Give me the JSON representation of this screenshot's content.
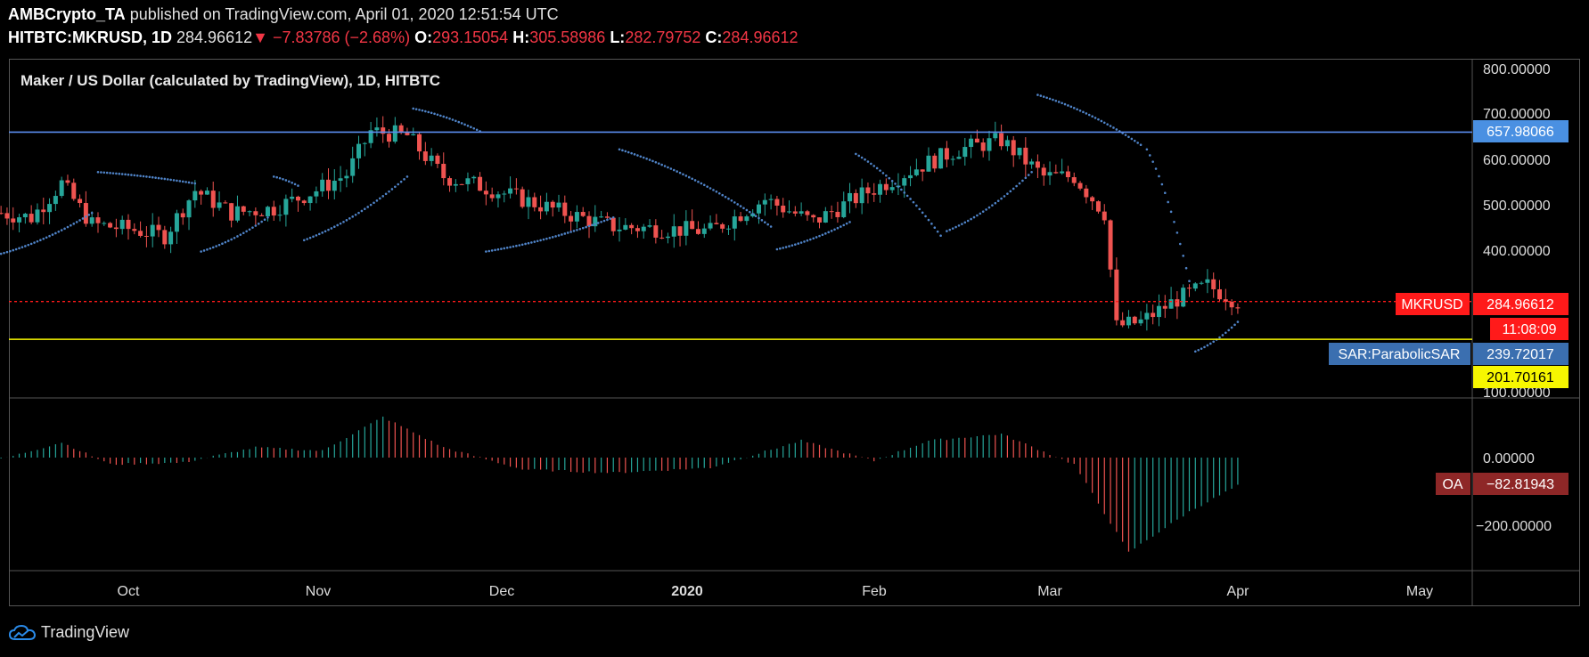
{
  "header": {
    "author": "AMBCrypto_TA",
    "published": "published on TradingView.com, April 01, 2020 12:51:54 UTC",
    "symbol": "HITBTC:MKRUSD, 1D",
    "last": "284.96612",
    "change": "−7.83786 (−2.68%)",
    "o_label": "O:",
    "o": "293.15054",
    "h_label": "H:",
    "h": "305.58986",
    "l_label": "L:",
    "l": "282.79752",
    "c_label": "C:",
    "c": "284.96612"
  },
  "chart_title": "Maker / US Dollar (calculated by TradingView), 1D, HITBTC",
  "badges": {
    "resistance": "657.98066",
    "symbol_name": "MKRUSD",
    "price": "284.96612",
    "countdown": "11:08:09",
    "sar_name": "SAR:ParabolicSAR",
    "sar": "239.72017",
    "support": "201.70161",
    "osc_name": "OA",
    "osc": "−82.81943"
  },
  "brand": "TradingView",
  "colors": {
    "up": "#26a69a",
    "down": "#ef5350",
    "sar": "#4f83c7",
    "resistance": "#5b8def",
    "support": "#f7f700",
    "price": "#ff1a1a"
  },
  "chart_data": [
    {
      "type": "candlestick",
      "title": "Maker / US Dollar (calculated by TradingView), 1D, HITBTC",
      "ylim": [
        130,
        830
      ],
      "y_ticks": [
        "800.00000",
        "700.00000",
        "600.00000",
        "500.00000",
        "400.00000",
        "100.00000"
      ],
      "x_ticks": [
        "Oct",
        "Nov",
        "Dec",
        "2020",
        "Feb",
        "Mar",
        "Apr",
        "May"
      ],
      "horizontal_lines": {
        "resistance": 657.98066,
        "support": 201.70161,
        "last": 284.96612
      },
      "close_path": [
        [
          "2019-09-10",
          480
        ],
        [
          "2019-09-15",
          470
        ],
        [
          "2019-09-20",
          545
        ],
        [
          "2019-09-25",
          455
        ],
        [
          "2019-10-01",
          445
        ],
        [
          "2019-10-07",
          430
        ],
        [
          "2019-10-12",
          530
        ],
        [
          "2019-10-18",
          480
        ],
        [
          "2019-10-25",
          490
        ],
        [
          "2019-11-01",
          530
        ],
        [
          "2019-11-06",
          565
        ],
        [
          "2019-11-10",
          660
        ],
        [
          "2019-11-16",
          650
        ],
        [
          "2019-11-22",
          560
        ],
        [
          "2019-11-28",
          540
        ],
        [
          "2019-12-05",
          510
        ],
        [
          "2019-12-12",
          480
        ],
        [
          "2019-12-20",
          450
        ],
        [
          "2019-12-28",
          445
        ],
        [
          "2020-01-05",
          440
        ],
        [
          "2020-01-14",
          510
        ],
        [
          "2020-01-22",
          460
        ],
        [
          "2020-01-30",
          520
        ],
        [
          "2020-02-08",
          580
        ],
        [
          "2020-02-15",
          620
        ],
        [
          "2020-02-22",
          640
        ],
        [
          "2020-02-29",
          560
        ],
        [
          "2020-03-05",
          560
        ],
        [
          "2020-03-10",
          480
        ],
        [
          "2020-03-12",
          230
        ],
        [
          "2020-03-16",
          240
        ],
        [
          "2020-03-22",
          290
        ],
        [
          "2020-03-27",
          320
        ],
        [
          "2020-04-01",
          284.97
        ]
      ],
      "parabolic_sar": [
        [
          "2019-09-10",
          390
        ],
        [
          "2019-09-25",
          480
        ],
        [
          "2019-09-26",
          570
        ],
        [
          "2019-10-12",
          545
        ],
        [
          "2019-10-13",
          395
        ],
        [
          "2019-10-24",
          470
        ],
        [
          "2019-10-25",
          560
        ],
        [
          "2019-10-29",
          540
        ],
        [
          "2019-10-30",
          420
        ],
        [
          "2019-11-16",
          560
        ],
        [
          "2019-11-17",
          710
        ],
        [
          "2019-11-28",
          660
        ],
        [
          "2019-11-29",
          395
        ],
        [
          "2019-12-20",
          470
        ],
        [
          "2019-12-21",
          620
        ],
        [
          "2020-01-15",
          450
        ],
        [
          "2020-01-16",
          400
        ],
        [
          "2020-01-28",
          460
        ],
        [
          "2020-01-29",
          610
        ],
        [
          "2020-02-12",
          430
        ],
        [
          "2020-02-13",
          440
        ],
        [
          "2020-02-27",
          570
        ],
        [
          "2020-02-28",
          740
        ],
        [
          "2020-03-16",
          630
        ],
        [
          "2020-03-17",
          620
        ],
        [
          "2020-03-24",
          330
        ],
        [
          "2020-03-25",
          175
        ],
        [
          "2020-04-01",
          240
        ]
      ],
      "last_price": 284.96612,
      "sar_value": 239.72017
    },
    {
      "type": "histogram",
      "series_name": "OA",
      "ylim": [
        -290,
        140
      ],
      "y_ticks": [
        "0.00000",
        "−200.00000"
      ],
      "points": [
        [
          "2019-09-10",
          -5
        ],
        [
          "2019-09-20",
          45
        ],
        [
          "2019-09-28",
          -20
        ],
        [
          "2019-10-10",
          -15
        ],
        [
          "2019-10-22",
          30
        ],
        [
          "2019-11-02",
          20
        ],
        [
          "2019-11-12",
          120
        ],
        [
          "2019-11-22",
          30
        ],
        [
          "2019-12-05",
          -35
        ],
        [
          "2019-12-20",
          -45
        ],
        [
          "2020-01-05",
          -30
        ],
        [
          "2020-01-20",
          50
        ],
        [
          "2020-02-01",
          -10
        ],
        [
          "2020-02-10",
          50
        ],
        [
          "2020-02-22",
          70
        ],
        [
          "2020-03-05",
          -20
        ],
        [
          "2020-03-14",
          -280
        ],
        [
          "2020-03-24",
          -160
        ],
        [
          "2020-04-01",
          -82.81943
        ]
      ],
      "last_value": -82.81943
    }
  ]
}
